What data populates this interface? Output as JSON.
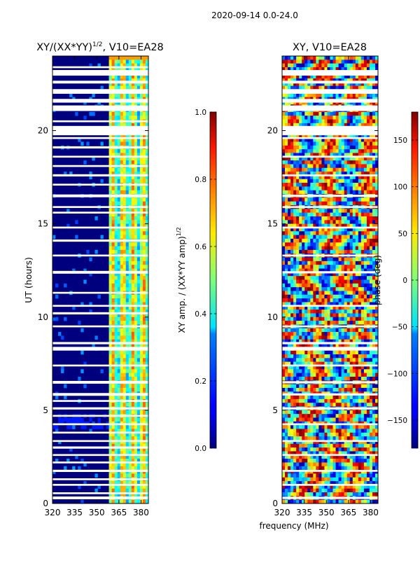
{
  "suptitle": "2020-09-14 0.0-24.0",
  "shared_xlabel": "frequency (MHz)",
  "chart_data": [
    {
      "type": "heatmap",
      "title_main": "XY/(XX*YY)",
      "title_sup": "1/2",
      "title_tail": ", V10=EA28",
      "ylabel": "UT (hours)",
      "xlim": [
        320,
        385
      ],
      "ylim": [
        0,
        24
      ],
      "x_ticks": [
        320,
        335,
        350,
        365,
        380
      ],
      "y_ticks": [
        0,
        5,
        10,
        15,
        20
      ],
      "colorbar": {
        "label_main": "XY amp. / (XX*YY amp)",
        "label_sup": "1/2",
        "range": [
          0.0,
          1.0
        ],
        "ticks": [
          "0.0",
          "0.2",
          "0.4",
          "0.6",
          "0.8",
          "1.0"
        ],
        "tick_values": [
          0.0,
          0.2,
          0.4,
          0.6,
          0.8,
          1.0
        ]
      },
      "flagged_hours": [
        0.3,
        0.55,
        1.0,
        1.3,
        1.75,
        2.2,
        2.6,
        3.0,
        3.35,
        3.8,
        4.25,
        4.7,
        5.1,
        5.5,
        5.85,
        6.5,
        7.4,
        8.3,
        8.6,
        9.5,
        10.2,
        10.6,
        11.3,
        12.4,
        13.3,
        14.1,
        14.8,
        15.6,
        15.9,
        16.5,
        17.1,
        17.6,
        18.1,
        18.6,
        19.1,
        19.6,
        20.0,
        20.5,
        21.2,
        21.6,
        22.1,
        22.6,
        23.1,
        23.4
      ],
      "flagged_widths": [
        0.15,
        0.1,
        0.1,
        0.1,
        0.12,
        0.1,
        0.1,
        0.12,
        0.1,
        0.1,
        0.1,
        0.1,
        0.12,
        0.1,
        0.15,
        0.15,
        0.1,
        0.2,
        0.12,
        0.1,
        0.12,
        0.1,
        0.1,
        0.15,
        0.1,
        0.12,
        0.1,
        0.1,
        0.1,
        0.15,
        0.1,
        0.12,
        0.1,
        0.1,
        0.12,
        0.1,
        0.5,
        0.1,
        0.3,
        0.2,
        0.25,
        0.15,
        0.3,
        0.1
      ]
    },
    {
      "type": "heatmap",
      "title_main": "XY, V10=EA28",
      "xlim": [
        320,
        385
      ],
      "ylim": [
        0,
        24
      ],
      "x_ticks": [
        320,
        335,
        350,
        365,
        380
      ],
      "y_ticks": [
        0,
        5,
        10,
        15,
        20
      ],
      "colorbar": {
        "label_main": "phase (deg)",
        "range": [
          -180,
          180
        ],
        "ticks": [
          "−150",
          "−100",
          "−50",
          "0",
          "50",
          "100",
          "150"
        ],
        "tick_values": [
          -150,
          -100,
          -50,
          0,
          50,
          100,
          150
        ]
      },
      "flagged_hours": [
        0.3,
        1.0,
        1.75,
        2.6,
        3.35,
        4.25,
        5.1,
        5.85,
        6.5,
        7.4,
        8.3,
        8.6,
        9.5,
        10.6,
        12.4,
        13.3,
        14.8,
        15.9,
        16.5,
        17.6,
        18.6,
        19.6,
        20.0,
        21.2,
        21.6,
        22.1,
        22.6,
        23.1
      ],
      "flagged_widths": [
        0.12,
        0.1,
        0.1,
        0.1,
        0.1,
        0.1,
        0.12,
        0.12,
        0.12,
        0.1,
        0.2,
        0.12,
        0.1,
        0.1,
        0.12,
        0.1,
        0.1,
        0.1,
        0.12,
        0.1,
        0.1,
        0.1,
        0.5,
        0.3,
        0.2,
        0.25,
        0.15,
        0.3
      ]
    }
  ],
  "colors": {
    "jet_low": "#00007f",
    "jet_high": "#7f0000"
  }
}
